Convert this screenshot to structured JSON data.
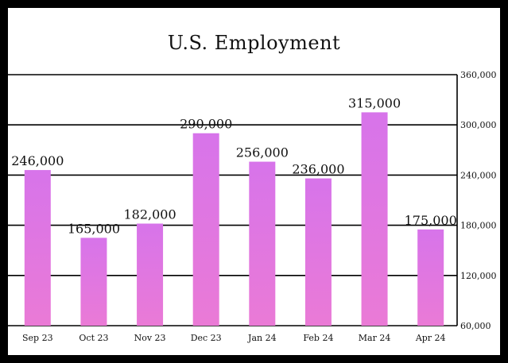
{
  "chart_data": {
    "type": "bar",
    "title": "U.S. Employment",
    "xlabel": "",
    "ylabel": "",
    "categories": [
      "Sep 23",
      "Oct 23",
      "Nov 23",
      "Dec 23",
      "Jan 24",
      "Feb 24",
      "Mar 24",
      "Apr 24"
    ],
    "values": [
      246000,
      165000,
      182000,
      290000,
      256000,
      236000,
      315000,
      175000
    ],
    "value_labels": [
      "246,000",
      "165,000",
      "182,000",
      "290,000",
      "256,000",
      "236,000",
      "315,000",
      "175,000"
    ],
    "ylim": [
      60000,
      360000
    ],
    "y_ticks": [
      60000,
      120000,
      180000,
      240000,
      300000,
      360000
    ],
    "y_tick_labels": [
      "60,000",
      "120,000",
      "180,000",
      "240,000",
      "300,000",
      "360,000"
    ],
    "y_axis_side": "right",
    "grid": true,
    "legend": "none",
    "colors": {
      "bar_top": "#d774ea",
      "bar_bottom": "#ea7ad6",
      "gridline": "#000000",
      "background": "#ffffff",
      "frame": "#000000"
    }
  }
}
